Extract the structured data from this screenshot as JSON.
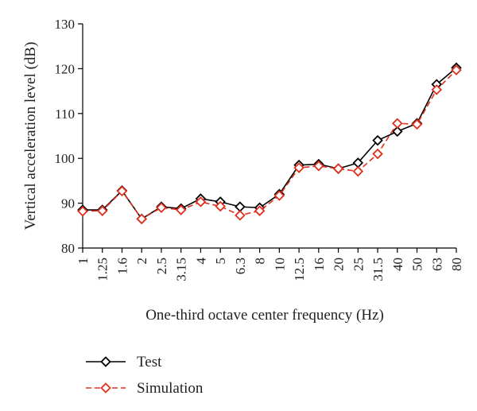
{
  "chart_data": {
    "type": "line",
    "title": "",
    "xlabel": "One-third octave center frequency (Hz)",
    "ylabel": "Vertical acceleration level (dB)",
    "ylim": [
      80,
      130
    ],
    "yticks": [
      80,
      90,
      100,
      110,
      120,
      130
    ],
    "grid": false,
    "legend_position": "bottom-left",
    "categories": [
      "1",
      "1.25",
      "1.6",
      "2",
      "2.5",
      "3.15",
      "4",
      "5",
      "6.3",
      "8",
      "10",
      "12.5",
      "16",
      "20",
      "25",
      "31.5",
      "40",
      "50",
      "63",
      "80"
    ],
    "series": [
      {
        "name": "Test",
        "color": "#000000",
        "dashed": false,
        "marker": "diamond",
        "values": [
          88.5,
          88.5,
          92.8,
          86.5,
          89.2,
          88.8,
          91.0,
          90.3,
          89.2,
          89.0,
          92.0,
          98.5,
          98.7,
          97.7,
          99.0,
          104.0,
          106.0,
          107.8,
          116.5,
          120.2
        ]
      },
      {
        "name": "Simulation",
        "color": "#e0301e",
        "dashed": true,
        "marker": "diamond",
        "values": [
          88.2,
          88.3,
          92.7,
          86.5,
          89.0,
          88.5,
          90.3,
          89.3,
          87.3,
          88.3,
          91.7,
          97.9,
          98.3,
          97.7,
          97.1,
          101.0,
          107.8,
          107.6,
          115.3,
          119.7
        ]
      }
    ]
  }
}
